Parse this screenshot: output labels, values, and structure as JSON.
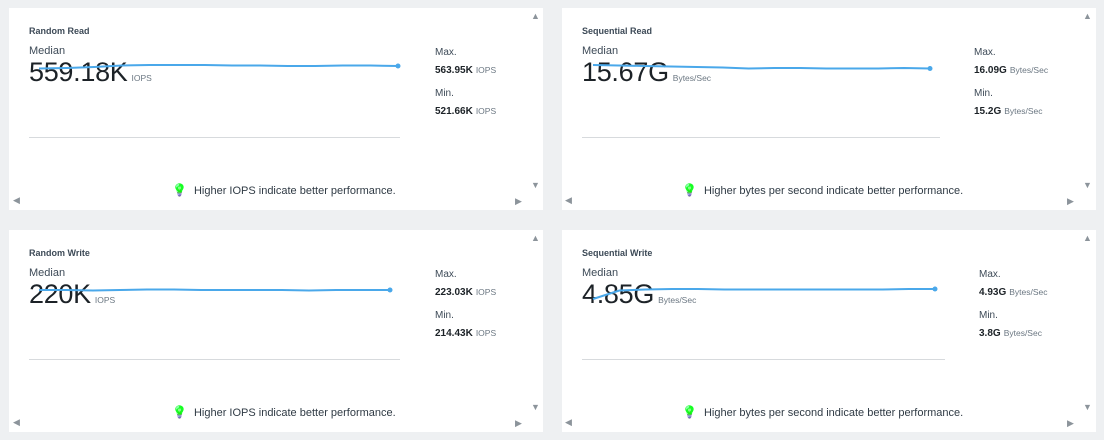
{
  "colors": {
    "line": "#4aa8ea",
    "hint_icon": "#3cbf4e",
    "background": "#eef0f2",
    "card": "#ffffff"
  },
  "icons": {
    "hint": "lightbulb-icon",
    "scroll_up": "triangle-up-icon",
    "scroll_down": "triangle-down-icon",
    "scroll_left": "triangle-left-icon",
    "scroll_right": "triangle-right-icon"
  },
  "cards": [
    {
      "title": "Random Read",
      "median_label": "Median",
      "median_value": "559.18K",
      "median_unit": "IOPS",
      "max_label": "Max.",
      "max_value": "563.95K",
      "max_unit": "IOPS",
      "min_label": "Min.",
      "min_value": "521.66K",
      "min_unit": "IOPS",
      "hint": "Higher IOPS indicate better performance.",
      "trend": [
        0.55,
        0.56,
        0.58,
        0.61,
        0.62,
        0.62,
        0.62,
        0.61,
        0.61,
        0.6,
        0.6,
        0.61,
        0.61,
        0.6
      ]
    },
    {
      "title": "Sequential Read",
      "median_label": "Median",
      "median_value": "15.67G",
      "median_unit": "Bytes/Sec",
      "max_label": "Max.",
      "max_value": "16.09G",
      "max_unit": "Bytes/Sec",
      "min_label": "Min.",
      "min_value": "15.2G",
      "min_unit": "Bytes/Sec",
      "hint": "Higher bytes per second indicate better performance.",
      "trend": [
        0.62,
        0.61,
        0.6,
        0.59,
        0.58,
        0.57,
        0.55,
        0.56,
        0.56,
        0.55,
        0.55,
        0.55,
        0.56,
        0.55
      ]
    },
    {
      "title": "Random Write",
      "median_label": "Median",
      "median_value": "220K",
      "median_unit": "IOPS",
      "max_label": "Max.",
      "max_value": "223.03K",
      "max_unit": "IOPS",
      "min_label": "Min.",
      "min_value": "214.43K",
      "min_unit": "IOPS",
      "hint": "Higher IOPS indicate better performance.",
      "trend": [
        0.56,
        0.56,
        0.55,
        0.56,
        0.57,
        0.57,
        0.56,
        0.56,
        0.56,
        0.56,
        0.55,
        0.56,
        0.56,
        0.56
      ]
    },
    {
      "title": "Sequential Write",
      "median_label": "Median",
      "median_value": "4.85G",
      "median_unit": "Bytes/Sec",
      "max_label": "Max.",
      "max_value": "4.93G",
      "max_unit": "Bytes/Sec",
      "min_label": "Min.",
      "min_value": "3.8G",
      "min_unit": "Bytes/Sec",
      "hint": "Higher bytes per second indicate better performance.",
      "trend": [
        0.38,
        0.55,
        0.57,
        0.58,
        0.58,
        0.57,
        0.57,
        0.57,
        0.57,
        0.57,
        0.57,
        0.57,
        0.58,
        0.58
      ]
    }
  ]
}
